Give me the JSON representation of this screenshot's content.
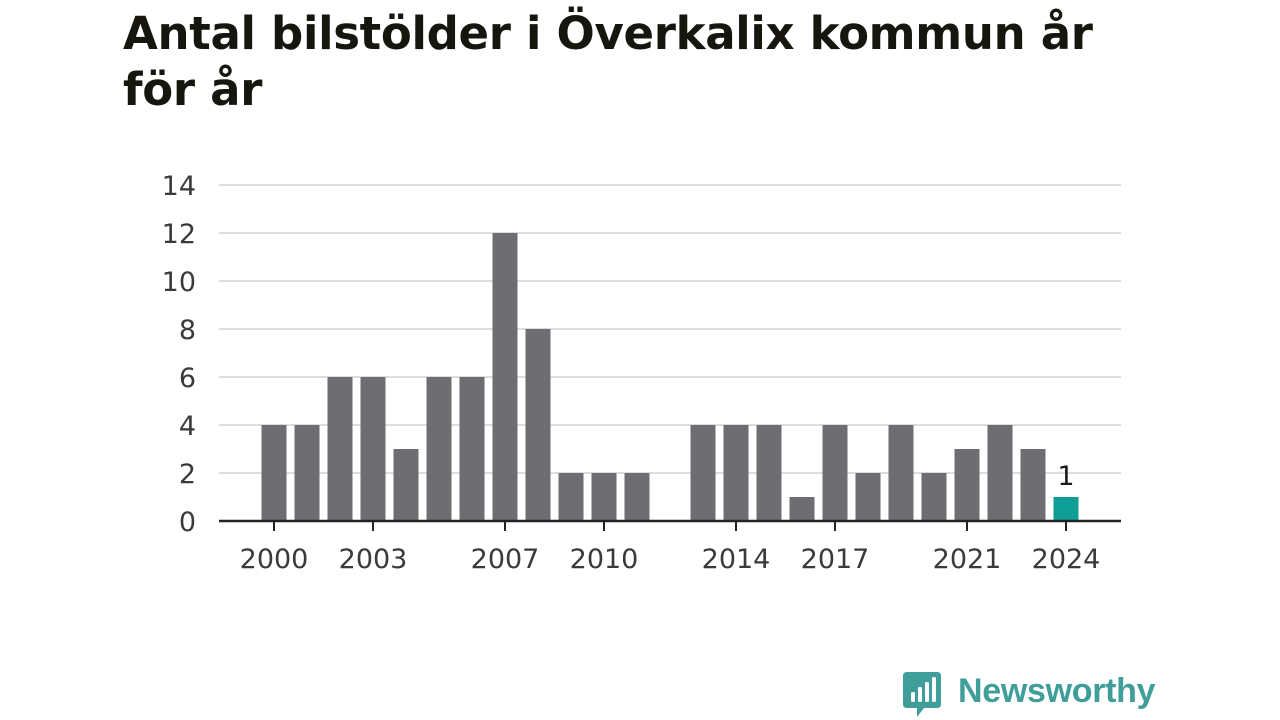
{
  "chart_data": {
    "type": "bar",
    "title": "Antal bilstölder i Överkalix kommun år för år",
    "xlabel": "",
    "ylabel": "",
    "categories": [
      "2000",
      "2001",
      "2002",
      "2003",
      "2004",
      "2005",
      "2006",
      "2007",
      "2008",
      "2009",
      "2010",
      "2011",
      "2012",
      "2013",
      "2014",
      "2015",
      "2016",
      "2017",
      "2018",
      "2019",
      "2020",
      "2021",
      "2022",
      "2023",
      "2024"
    ],
    "values": [
      4,
      4,
      6,
      6,
      3,
      6,
      6,
      12,
      8,
      2,
      2,
      2,
      null,
      4,
      4,
      4,
      1,
      4,
      2,
      4,
      2,
      3,
      4,
      3,
      1
    ],
    "x_tick_labels": [
      "2000",
      "2003",
      "2007",
      "2010",
      "2014",
      "2017",
      "2021",
      "2024"
    ],
    "y_ticks": [
      0,
      2,
      4,
      6,
      8,
      10,
      12,
      14
    ],
    "ylim": [
      0,
      14
    ],
    "grid": true,
    "highlight": {
      "category": "2024",
      "label": "1"
    },
    "colors": {
      "bar": "#6e6d72",
      "highlight": "#0f9e96",
      "grid": "#dddddd",
      "axis": "#222222",
      "tick_text": "#3a3a3a"
    }
  },
  "brand": {
    "name": "Newsworthy",
    "icon": "newsworthy-bar-chart-icon",
    "color": "#3f9e99"
  }
}
